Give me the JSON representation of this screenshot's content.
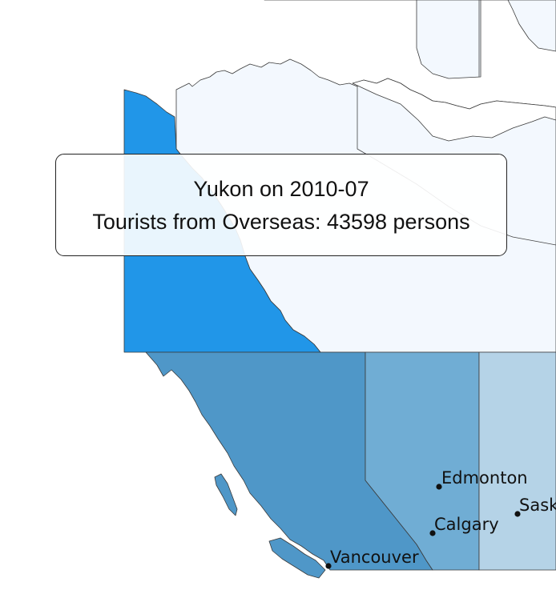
{
  "map": {
    "regions": [
      {
        "name": "Yukon",
        "color": "#2196e8"
      },
      {
        "name": "Northwest Territories",
        "color": "#f3f8fe"
      },
      {
        "name": "Nunavut",
        "color": "#f3f8fe"
      },
      {
        "name": "British Columbia",
        "color": "#4f97c8"
      },
      {
        "name": "Alberta",
        "color": "#70add4"
      },
      {
        "name": "Saskatchewan",
        "color": "#b5d3e7"
      }
    ],
    "cities": [
      {
        "name": "Edmonton"
      },
      {
        "name": "Calgary"
      },
      {
        "name": "Sask"
      },
      {
        "name": "Vancouver"
      }
    ]
  },
  "tooltip": {
    "title": "Yukon on 2010-07",
    "metric_label": "Tourists from Overseas",
    "value": "43598",
    "unit": "persons",
    "body": "Tourists from Overseas: 43598 persons"
  }
}
